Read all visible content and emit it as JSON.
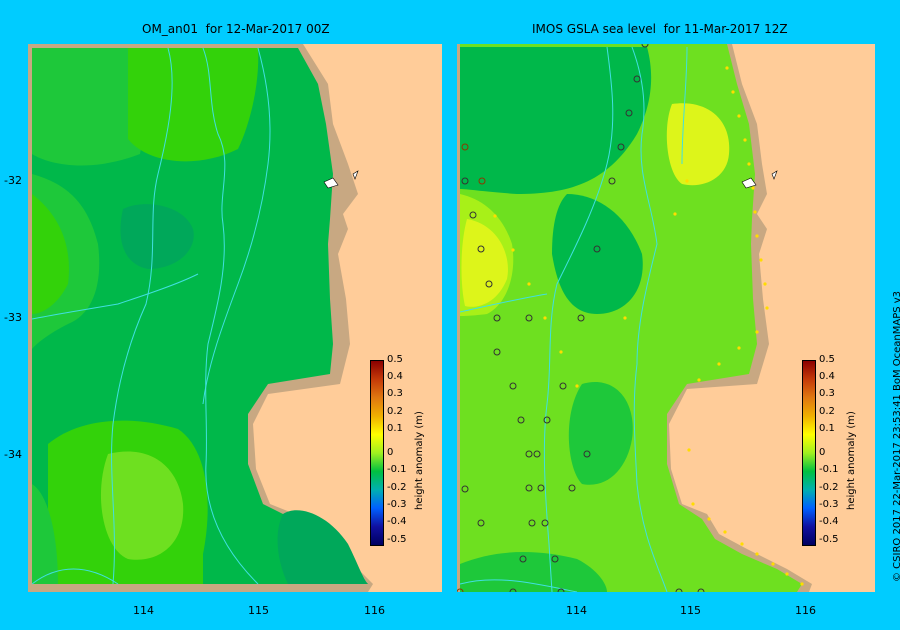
{
  "titles": {
    "left": "OM_an01  for 12-Mar-2017 00Z",
    "right": "IMOS GSLA sea level  for 11-Mar-2017 12Z"
  },
  "y_ticks": [
    "-32",
    "-33",
    "-34"
  ],
  "x_ticks_left": [
    "114",
    "115",
    "116"
  ],
  "x_ticks_right": [
    "114",
    "115",
    "116"
  ],
  "colorbar": {
    "title": "height anomaly (m)",
    "ticks": [
      "0.5",
      "0.4",
      "0.3",
      "0.2",
      "0.1",
      "0",
      "-0.1",
      "-0.2",
      "-0.3",
      "-0.4",
      "-0.5"
    ],
    "colors": [
      "#8b0000",
      "#c43a08",
      "#e07810",
      "#f0b000",
      "#ffff00",
      "#a0f020",
      "#00c040",
      "#00b0b0",
      "#0060ff",
      "#1010a0",
      "#000060"
    ]
  },
  "credit": "© CSIRO 2017   22-Mar-2017 23:53:41 BoM OceanMAPS v3",
  "colors": {
    "background": "#00ccff",
    "land": "#ffcc99",
    "shelf": "#c8a882",
    "contour": "#40e0e0"
  }
}
